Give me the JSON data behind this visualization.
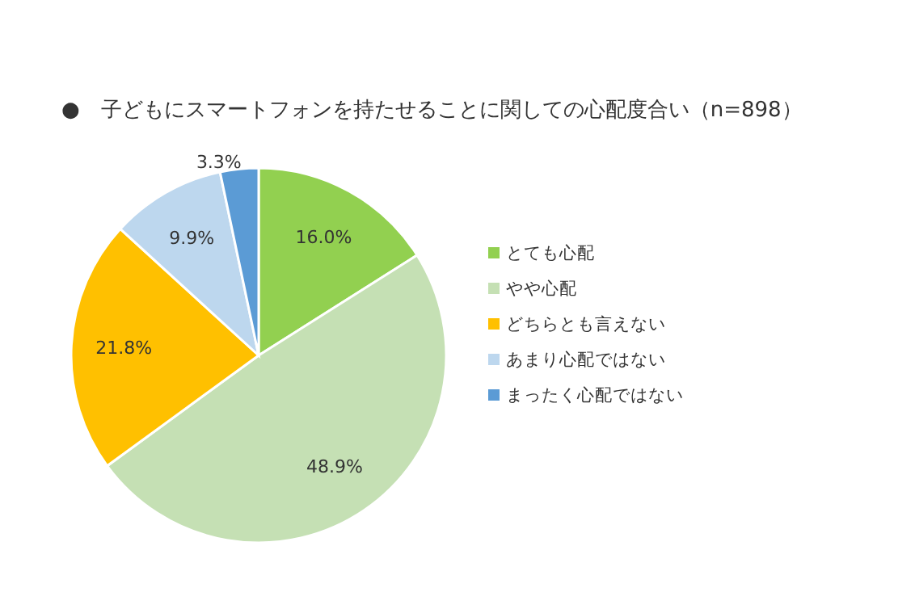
{
  "chart_data": {
    "type": "pie",
    "title": "●　子どもにスマートフォンを持たせることに関しての心配度合い（n=898）",
    "categories": [
      "とても心配",
      "やや心配",
      "どちらとも言えない",
      "あまり心配ではない",
      "まったく心配ではない"
    ],
    "values": [
      16.0,
      48.9,
      21.8,
      9.9,
      3.3
    ],
    "colors": [
      "#92d050",
      "#c5e0b4",
      "#ffc000",
      "#bdd7ee",
      "#5b9bd5"
    ],
    "value_labels": [
      "16.0%",
      "48.9%",
      "21.8%",
      "9.9%",
      "3.3%"
    ],
    "legend": "right"
  }
}
